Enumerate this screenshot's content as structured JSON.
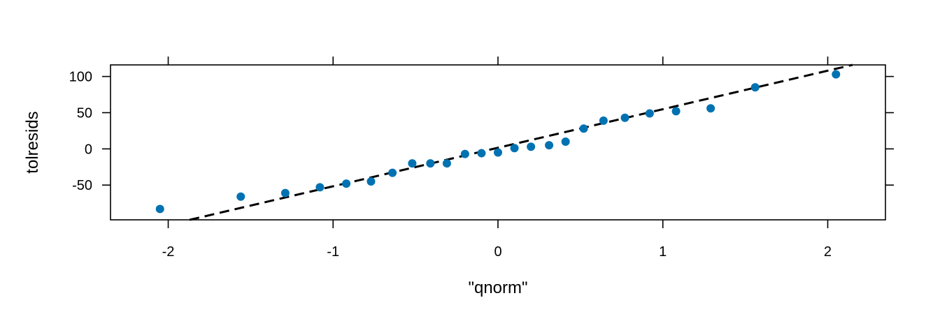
{
  "chart_data": {
    "type": "scatter",
    "title": "",
    "xlabel": "\"qnorm\"",
    "ylabel": "tolresids",
    "xlim": [
      -2.35,
      2.35
    ],
    "ylim": [
      -98,
      116
    ],
    "x_ticks": [
      -2,
      -1,
      0,
      1,
      2
    ],
    "x_tick_labels": [
      "-2",
      "-1",
      "0",
      "1",
      "2"
    ],
    "y_ticks": [
      -50,
      0,
      50,
      100
    ],
    "y_tick_labels": [
      "-50",
      "0",
      "50",
      "100"
    ],
    "grid": false,
    "legend": "none",
    "colors": {
      "points": "#0072B2",
      "reference_line": "#000000"
    },
    "points": [
      {
        "x": -2.05,
        "y": -83
      },
      {
        "x": -1.56,
        "y": -66
      },
      {
        "x": -1.29,
        "y": -61
      },
      {
        "x": -1.08,
        "y": -53
      },
      {
        "x": -0.92,
        "y": -48
      },
      {
        "x": -0.77,
        "y": -45
      },
      {
        "x": -0.64,
        "y": -33
      },
      {
        "x": -0.52,
        "y": -20
      },
      {
        "x": -0.41,
        "y": -20
      },
      {
        "x": -0.31,
        "y": -20
      },
      {
        "x": -0.2,
        "y": -7
      },
      {
        "x": -0.1,
        "y": -6
      },
      {
        "x": 0.0,
        "y": -5
      },
      {
        "x": 0.1,
        "y": 1
      },
      {
        "x": 0.2,
        "y": 3
      },
      {
        "x": 0.31,
        "y": 5
      },
      {
        "x": 0.41,
        "y": 10
      },
      {
        "x": 0.52,
        "y": 28
      },
      {
        "x": 0.64,
        "y": 39
      },
      {
        "x": 0.77,
        "y": 43
      },
      {
        "x": 0.92,
        "y": 49
      },
      {
        "x": 1.08,
        "y": 52
      },
      {
        "x": 1.29,
        "y": 56
      },
      {
        "x": 1.56,
        "y": 85
      },
      {
        "x": 2.05,
        "y": 103
      }
    ],
    "reference_line": {
      "style": "dashed",
      "from": {
        "x": -1.87,
        "y": -98
      },
      "to": {
        "x": 2.15,
        "y": 116
      }
    }
  }
}
